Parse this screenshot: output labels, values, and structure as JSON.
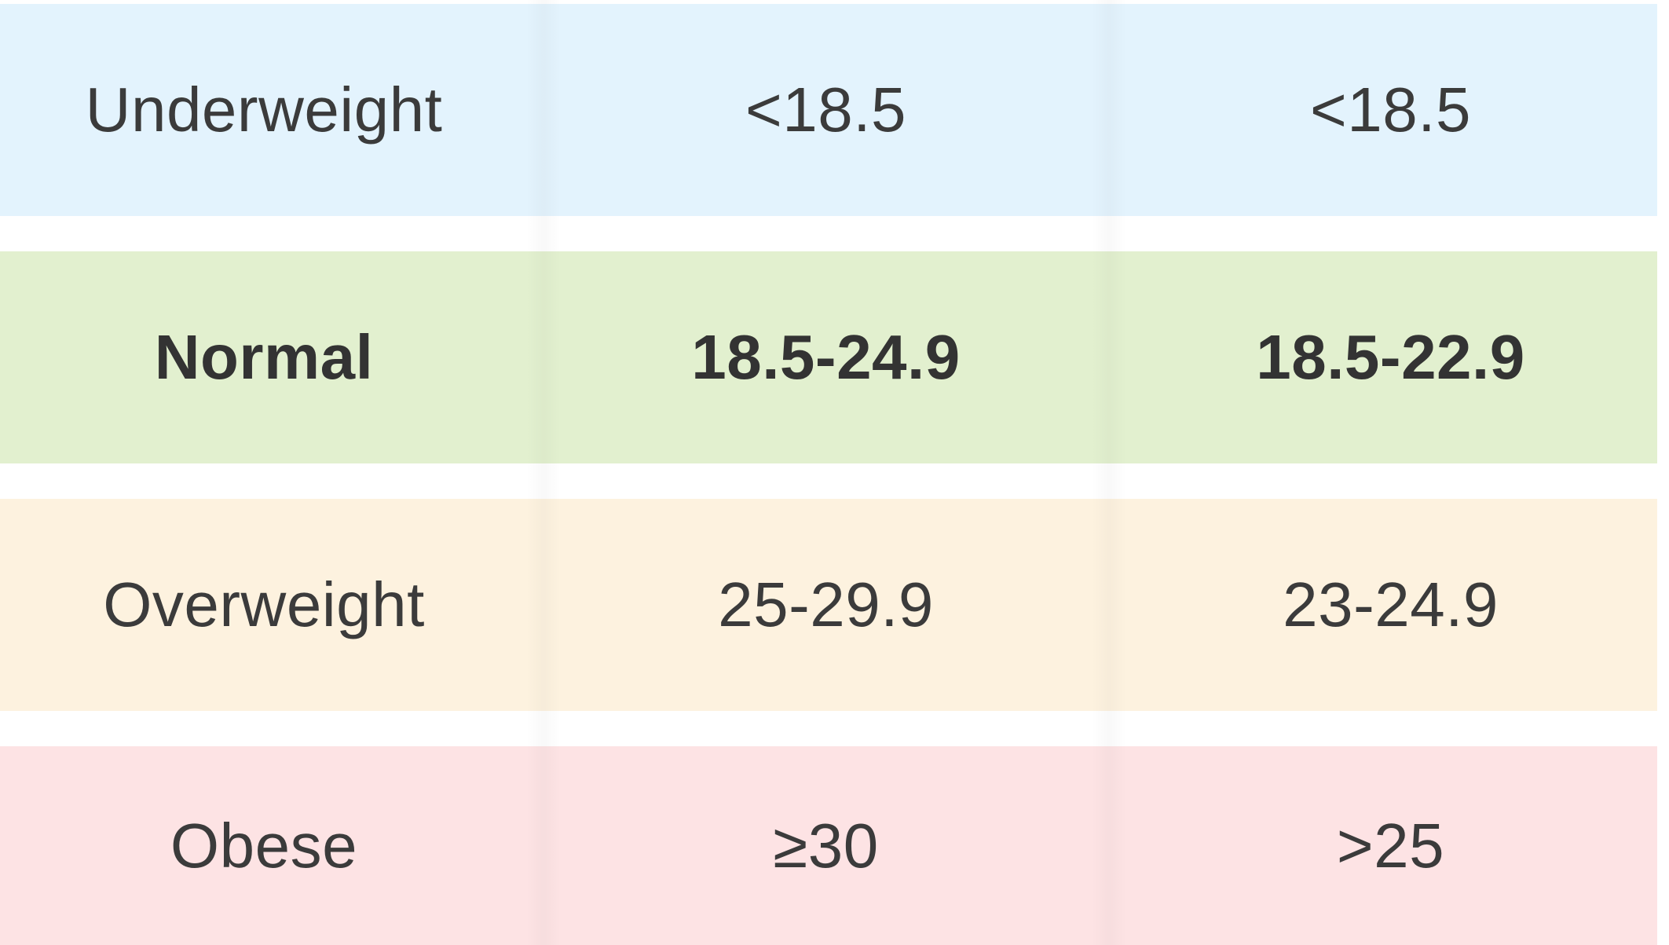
{
  "colors": {
    "underweight_bg": "#e3f3fd",
    "normal_bg": "#e2f0cf",
    "overweight_bg": "#fdf2df",
    "obese_bg": "#fde3e4",
    "text": "#3b3b3b"
  },
  "rows": [
    {
      "category": "Underweight",
      "value_a": "<18.5",
      "value_b": "<18.5"
    },
    {
      "category": "Normal",
      "value_a": "18.5-24.9",
      "value_b": "18.5-22.9"
    },
    {
      "category": "Overweight",
      "value_a": "25-29.9",
      "value_b": "23-24.9"
    },
    {
      "category": "Obese",
      "value_a": "≥30",
      "value_b": ">25"
    }
  ]
}
